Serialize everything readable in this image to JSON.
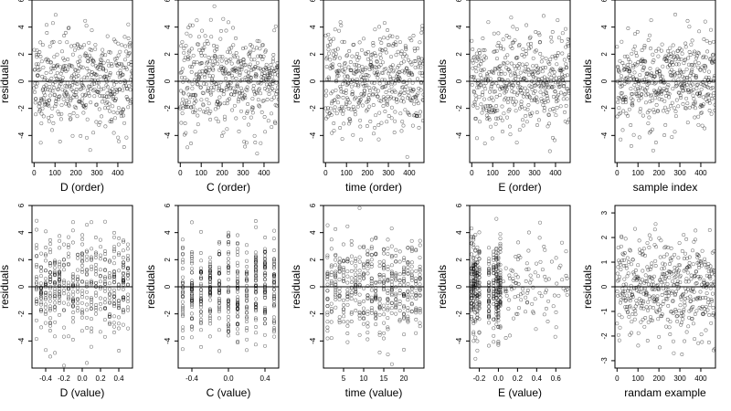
{
  "chart_data": [
    {
      "type": "scatter",
      "xlabel": "D (order)",
      "ylabel": "residuals",
      "xlim": [
        -10,
        470
      ],
      "ylim": [
        -6,
        6
      ],
      "xticks": [
        0,
        100,
        200,
        300,
        400
      ],
      "xtick_labels": [
        "0",
        "100",
        "200",
        "300",
        "400"
      ],
      "yticks": [
        -4,
        -2,
        0,
        2,
        4,
        6
      ],
      "ytick_labels": [
        "-4",
        "-2",
        "0",
        "2",
        "4",
        "6"
      ],
      "hline": 0,
      "marker": "open-circle",
      "n_points": 470,
      "spread": 1.8,
      "seed": 11,
      "layout": "uniform"
    },
    {
      "type": "scatter",
      "xlabel": "C (order)",
      "ylabel": "residuals",
      "xlim": [
        -10,
        470
      ],
      "ylim": [
        -6,
        6
      ],
      "xticks": [
        0,
        100,
        200,
        300,
        400
      ],
      "xtick_labels": [
        "0",
        "100",
        "200",
        "300",
        "400"
      ],
      "yticks": [
        -4,
        -2,
        0,
        2,
        4,
        6
      ],
      "ytick_labels": [
        "-4",
        "-2",
        "0",
        "2",
        "4",
        "6"
      ],
      "hline": 0,
      "marker": "open-circle",
      "n_points": 470,
      "spread": 1.8,
      "seed": 23,
      "layout": "uniform"
    },
    {
      "type": "scatter",
      "xlabel": "time (order)",
      "ylabel": "residuals",
      "xlim": [
        -10,
        470
      ],
      "ylim": [
        -6,
        6
      ],
      "xticks": [
        0,
        100,
        200,
        300,
        400
      ],
      "xtick_labels": [
        "0",
        "100",
        "200",
        "300",
        "400"
      ],
      "yticks": [
        -4,
        -2,
        0,
        2,
        4,
        6
      ],
      "ytick_labels": [
        "-4",
        "-2",
        "0",
        "2",
        "4",
        "6"
      ],
      "hline": 0,
      "marker": "open-circle",
      "n_points": 470,
      "spread": 1.8,
      "seed": 37,
      "layout": "uniform"
    },
    {
      "type": "scatter",
      "xlabel": "E (order)",
      "ylabel": "residuals",
      "xlim": [
        -10,
        470
      ],
      "ylim": [
        -6,
        6
      ],
      "xticks": [
        0,
        100,
        200,
        300,
        400
      ],
      "xtick_labels": [
        "0",
        "100",
        "200",
        "300",
        "400"
      ],
      "yticks": [
        -4,
        -2,
        0,
        2,
        4,
        6
      ],
      "ytick_labels": [
        "-4",
        "-2",
        "0",
        "2",
        "4",
        "6"
      ],
      "hline": 0,
      "marker": "open-circle",
      "n_points": 470,
      "spread": 1.8,
      "seed": 41,
      "layout": "uniform"
    },
    {
      "type": "scatter",
      "xlabel": "sample index",
      "ylabel": "residuals",
      "xlim": [
        -10,
        470
      ],
      "ylim": [
        -6,
        6
      ],
      "xticks": [
        0,
        100,
        200,
        300,
        400
      ],
      "xtick_labels": [
        "0",
        "100",
        "200",
        "300",
        "400"
      ],
      "yticks": [
        -4,
        -2,
        0,
        2,
        4,
        6
      ],
      "ytick_labels": [
        "-4",
        "-2",
        "0",
        "2",
        "4",
        "6"
      ],
      "hline": 0,
      "marker": "open-circle",
      "n_points": 470,
      "spread": 1.8,
      "seed": 53,
      "layout": "uniform"
    },
    {
      "type": "scatter",
      "xlabel": "D (value)",
      "ylabel": "residuals",
      "xlim": [
        -0.55,
        0.55
      ],
      "ylim": [
        -6,
        6
      ],
      "xticks": [
        -0.4,
        -0.2,
        0,
        0.2,
        0.4
      ],
      "xtick_labels": [
        "-0.4",
        "-0.2",
        "0.0",
        "0.2",
        "0.4"
      ],
      "yticks": [
        -4,
        -2,
        0,
        2,
        4,
        6
      ],
      "ytick_labels": [
        "-4",
        "-2",
        "0",
        "2",
        "4",
        "6"
      ],
      "hline": 0,
      "marker": "open-circle",
      "n_points": 470,
      "spread": 1.8,
      "seed": 67,
      "layout": "columns",
      "x_columns": [
        -0.5,
        -0.45,
        -0.4,
        -0.35,
        -0.3,
        -0.25,
        -0.2,
        -0.15,
        -0.1,
        -0.05,
        0,
        0.05,
        0.1,
        0.15,
        0.2,
        0.25,
        0.3,
        0.35,
        0.4,
        0.45,
        0.5
      ]
    },
    {
      "type": "scatter",
      "xlabel": "C (value)",
      "ylabel": "residuals",
      "xlim": [
        -0.55,
        0.55
      ],
      "ylim": [
        -6,
        6
      ],
      "xticks": [
        -0.4,
        0,
        0.4
      ],
      "xtick_labels": [
        "-0.4",
        "0.0",
        "0.4"
      ],
      "yticks": [
        -4,
        -2,
        0,
        2,
        4,
        6
      ],
      "ytick_labels": [
        "-4",
        "-2",
        "0",
        "2",
        "4",
        "6"
      ],
      "hline": 0,
      "marker": "open-circle",
      "n_points": 470,
      "spread": 1.8,
      "seed": 79,
      "layout": "columns",
      "x_columns": [
        -0.5,
        -0.4,
        -0.3,
        -0.2,
        -0.1,
        0,
        0.1,
        0.2,
        0.3,
        0.4,
        0.5
      ]
    },
    {
      "type": "scatter",
      "xlabel": "time (value)",
      "ylabel": "residuals",
      "xlim": [
        0,
        25
      ],
      "ylim": [
        -6,
        6
      ],
      "xticks": [
        5,
        10,
        15,
        20
      ],
      "xtick_labels": [
        "5",
        "10",
        "15",
        "20"
      ],
      "yticks": [
        -4,
        -2,
        0,
        2,
        4,
        6
      ],
      "ytick_labels": [
        "-4",
        "-2",
        "0",
        "2",
        "4",
        "6"
      ],
      "hline": 0,
      "marker": "open-circle",
      "n_points": 470,
      "spread": 1.8,
      "seed": 83,
      "layout": "columns",
      "x_columns": [
        1,
        2,
        3,
        4,
        5,
        6,
        7,
        8,
        9,
        10,
        11,
        12,
        13,
        14,
        15,
        16,
        17,
        18,
        19,
        20,
        21,
        22,
        23,
        24
      ]
    },
    {
      "type": "scatter",
      "xlabel": "E (value)",
      "ylabel": "residuals",
      "xlim": [
        -0.3,
        0.75
      ],
      "ylim": [
        -6,
        6
      ],
      "xticks": [
        -0.2,
        0,
        0.2,
        0.4,
        0.6
      ],
      "xtick_labels": [
        "-0.2",
        "0.0",
        "0.2",
        "0.4",
        "0.6"
      ],
      "yticks": [
        -4,
        -2,
        0,
        2,
        4,
        6
      ],
      "ytick_labels": [
        "-4",
        "-2",
        "0",
        "2",
        "4",
        "6"
      ],
      "hline": 0,
      "marker": "open-circle",
      "n_points": 470,
      "spread": 1.8,
      "seed": 97,
      "layout": "skewed",
      "x_columns": [
        -0.28,
        -0.26,
        -0.24,
        -0.22,
        -0.2,
        -0.1,
        -0.05,
        -0.02,
        0,
        0.02
      ],
      "x_sparse_range": [
        0.05,
        0.72
      ]
    },
    {
      "type": "scatter",
      "xlabel": "randam example",
      "ylabel": "residuals",
      "xlim": [
        -10,
        470
      ],
      "ylim": [
        -3.3,
        3.3
      ],
      "xticks": [
        0,
        100,
        200,
        300,
        400
      ],
      "xtick_labels": [
        "0",
        "100",
        "200",
        "300",
        "400"
      ],
      "yticks": [
        -3,
        -2,
        -1,
        0,
        1,
        2,
        3
      ],
      "ytick_labels": [
        "-3",
        "-2",
        "-1",
        "0",
        "1",
        "2",
        "3"
      ],
      "hline": 0,
      "marker": "open-circle",
      "n_points": 470,
      "spread": 1.0,
      "seed": 101,
      "layout": "uniform"
    }
  ]
}
